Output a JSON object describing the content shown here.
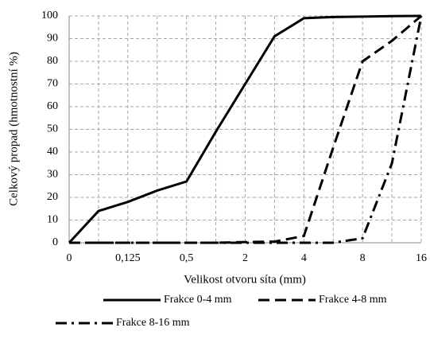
{
  "chart_data": {
    "type": "line",
    "x_label": "Velikost otvoru síta (mm)",
    "y_label": "Celkový propad (hmotnostní %)",
    "categories": [
      "0",
      null,
      "0,125",
      null,
      "0,5",
      null,
      "2",
      null,
      "4",
      null,
      "8",
      null,
      "16"
    ],
    "series": [
      {
        "name": "Frakce 0-4 mm",
        "color": "#000000",
        "dash": "solid",
        "values": [
          0,
          14,
          18,
          23,
          27,
          49,
          70,
          91,
          99,
          99.5,
          99.7,
          99.9,
          100
        ]
      },
      {
        "name": "Frakce 4-8 mm",
        "color": "#000000",
        "dash": "dashed",
        "values": [
          0,
          0,
          0,
          0,
          0,
          0,
          0.3,
          0.5,
          3,
          42,
          80,
          89,
          100
        ]
      },
      {
        "name": "Frakce 8-16 mm",
        "color": "#000000",
        "dash": "dashdot",
        "values": [
          0,
          0,
          0,
          0,
          0,
          0,
          0,
          0,
          0,
          0,
          2,
          35,
          100
        ]
      }
    ],
    "ylim": [
      0,
      100
    ],
    "yticks": [
      0,
      10,
      20,
      30,
      40,
      50,
      60,
      70,
      80,
      90,
      100
    ],
    "grid": true,
    "legend": "bottom"
  }
}
